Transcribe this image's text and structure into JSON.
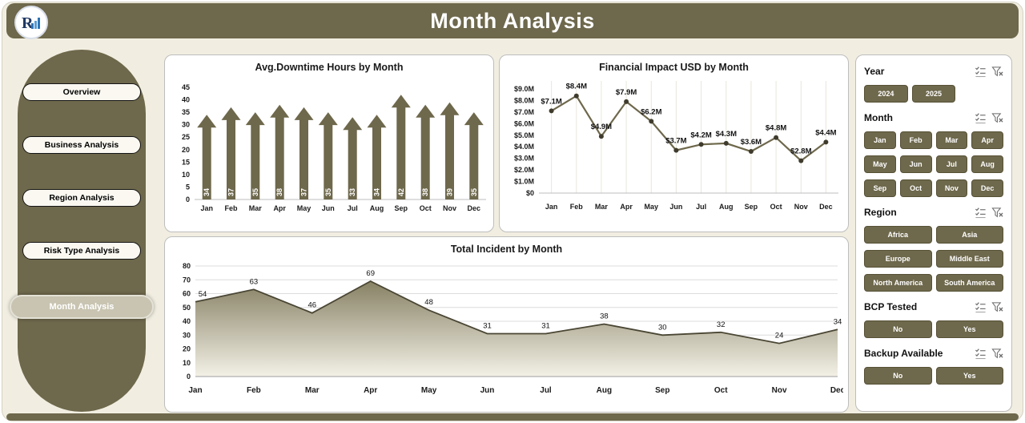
{
  "header": {
    "title": "Month Analysis",
    "logo_letter": "R"
  },
  "sidebar": {
    "items": [
      {
        "label": "Overview",
        "active": false
      },
      {
        "label": "Business Analysis",
        "active": false
      },
      {
        "label": "Region Analysis",
        "active": false
      },
      {
        "label": "Risk Type Analysis",
        "active": false
      },
      {
        "label": "Month Analysis",
        "active": true
      }
    ]
  },
  "chart_data": [
    {
      "type": "bar",
      "title": "Avg.Downtime Hours by Month",
      "categories": [
        "Jan",
        "Feb",
        "Mar",
        "Apr",
        "May",
        "Jun",
        "Jul",
        "Aug",
        "Sep",
        "Oct",
        "Nov",
        "Dec"
      ],
      "values": [
        34,
        37,
        35,
        38,
        37,
        35,
        33,
        34,
        42,
        38,
        39,
        35
      ],
      "xlabel": "",
      "ylabel": "",
      "ylim": [
        0,
        45
      ],
      "ytick_step": 5,
      "bar_style": "up-arrow",
      "grid": false,
      "legend": false
    },
    {
      "type": "line",
      "title": "Financial Impact USD by Month",
      "categories": [
        "Jan",
        "Feb",
        "Mar",
        "Apr",
        "May",
        "Jun",
        "Jul",
        "Aug",
        "Sep",
        "Oct",
        "Nov",
        "Dec"
      ],
      "values": [
        7.1,
        8.4,
        4.9,
        7.9,
        6.2,
        3.7,
        4.2,
        4.3,
        3.6,
        4.8,
        2.8,
        4.4
      ],
      "point_labels": [
        "$7.1M",
        "$8.4M",
        "$4.9M",
        "$7.9M",
        "$6.2M",
        "$3.7M",
        "$4.2M",
        "$4.3M",
        "$3.6M",
        "$4.8M",
        "$2.8M",
        "$4.4M"
      ],
      "xlabel": "",
      "ylabel": "",
      "ylim": [
        0,
        9
      ],
      "yticks": [
        "$0",
        "$1.0M",
        "$2.0M",
        "$3.0M",
        "$4.0M",
        "$5.0M",
        "$6.0M",
        "$7.0M",
        "$8.0M",
        "$9.0M"
      ],
      "grid": "vertical",
      "legend": false
    },
    {
      "type": "area",
      "title": "Total Incident by Month",
      "categories": [
        "Jan",
        "Feb",
        "Mar",
        "Apr",
        "May",
        "Jun",
        "Jul",
        "Aug",
        "Sep",
        "Oct",
        "Nov",
        "Dec"
      ],
      "values": [
        54,
        63,
        46,
        69,
        48,
        31,
        31,
        38,
        30,
        32,
        24,
        34
      ],
      "xlabel": "",
      "ylabel": "",
      "ylim": [
        0,
        80
      ],
      "ytick_step": 10,
      "grid": "horizontal",
      "legend": false
    }
  ],
  "filters": {
    "groups": [
      {
        "title": "Year",
        "cols": 3,
        "options": [
          "2024",
          "2025"
        ]
      },
      {
        "title": "Month",
        "cols": 4,
        "options": [
          "Jan",
          "Feb",
          "Mar",
          "Apr",
          "May",
          "Jun",
          "Jul",
          "Aug",
          "Sep",
          "Oct",
          "Nov",
          "Dec"
        ]
      },
      {
        "title": "Region",
        "cols": 2,
        "options": [
          "Africa",
          "Asia",
          "Europe",
          "Middle East",
          "North America",
          "South America"
        ]
      },
      {
        "title": "BCP Tested",
        "cols": 2,
        "options": [
          "No",
          "Yes"
        ]
      },
      {
        "title": "Backup Available",
        "cols": 2,
        "options": [
          "No",
          "Yes"
        ]
      }
    ]
  },
  "colors": {
    "accent": "#6e684c",
    "page_bg": "#f1eee1",
    "active_nav": "#c8c4b1",
    "area_gradient_top": "#878164",
    "area_gradient_bottom": "#f3f1e7",
    "marker": "#3f3b2c",
    "area_line": "#4a4634"
  }
}
